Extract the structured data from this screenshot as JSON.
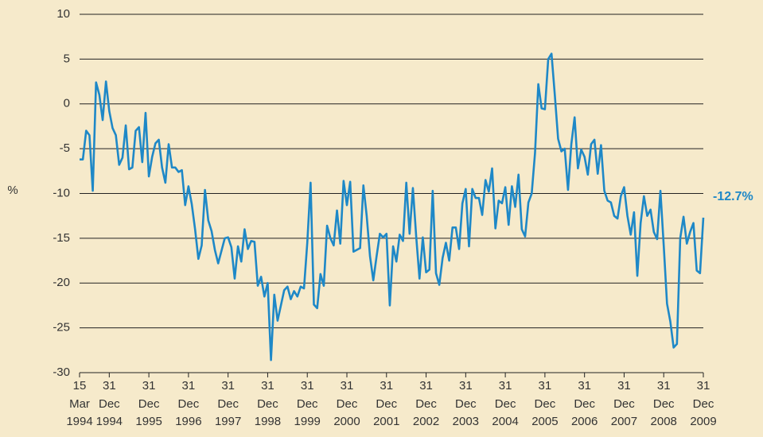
{
  "chart_data": {
    "type": "line",
    "y_label": "%",
    "categories": [
      "15 Mar 1994",
      null,
      null,
      null,
      null,
      null,
      null,
      null,
      null,
      "31 Dec 1994",
      null,
      null,
      null,
      null,
      null,
      null,
      null,
      null,
      null,
      null,
      null,
      "31 Dec 1995",
      null,
      null,
      null,
      null,
      null,
      null,
      null,
      null,
      null,
      null,
      null,
      "31 Dec 1996",
      null,
      null,
      null,
      null,
      null,
      null,
      null,
      null,
      null,
      null,
      null,
      "31 Dec 1997",
      null,
      null,
      null,
      null,
      null,
      null,
      null,
      null,
      null,
      null,
      null,
      "31 Dec 1998",
      null,
      null,
      null,
      null,
      null,
      null,
      null,
      null,
      null,
      null,
      null,
      "31 Dec 1999",
      null,
      null,
      null,
      null,
      null,
      null,
      null,
      null,
      null,
      null,
      null,
      "31 Dec 2000",
      null,
      null,
      null,
      null,
      null,
      null,
      null,
      null,
      null,
      null,
      null,
      "31 Dec 2001",
      null,
      null,
      null,
      null,
      null,
      null,
      null,
      null,
      null,
      null,
      null,
      "31 Dec 2002",
      null,
      null,
      null,
      null,
      null,
      null,
      null,
      null,
      null,
      null,
      null,
      "31 Dec 2003",
      null,
      null,
      null,
      null,
      null,
      null,
      null,
      null,
      null,
      null,
      null,
      "31 Dec 2004",
      null,
      null,
      null,
      null,
      null,
      null,
      null,
      null,
      null,
      null,
      null,
      "31 Dec 2005",
      null,
      null,
      null,
      null,
      null,
      null,
      null,
      null,
      null,
      null,
      null,
      "31 Dec 2006",
      null,
      null,
      null,
      null,
      null,
      null,
      null,
      null,
      null,
      null,
      null,
      "31 Dec 2007",
      null,
      null,
      null,
      null,
      null,
      null,
      null,
      null,
      null,
      null,
      null,
      "31 Dec 2008",
      null,
      null,
      null,
      null,
      null,
      null,
      null,
      null,
      null,
      null,
      null,
      "31 Dec 2009"
    ],
    "values": [
      -6.2,
      -6.2,
      -3,
      -3.5,
      -9.7,
      2.4,
      1,
      -1.8,
      2.5,
      -0.8,
      -2.7,
      -3.5,
      -6.8,
      -6,
      -2.4,
      -7.3,
      -7.1,
      -3,
      -2.6,
      -6.5,
      -1,
      -8.1,
      -5.9,
      -4.4,
      -4,
      -7.1,
      -8.8,
      -4.5,
      -7.1,
      -7.1,
      -7.6,
      -7.4,
      -11.3,
      -9.2,
      -11.2,
      -14,
      -17.3,
      -15.8,
      -9.6,
      -13,
      -14.2,
      -16.3,
      -17.8,
      -16.4,
      -15,
      -14.9,
      -16,
      -19.5,
      -15.9,
      -17.6,
      -14,
      -16.2,
      -15.3,
      -15.4,
      -20.3,
      -19.3,
      -21.5,
      -20,
      -28.6,
      -21.3,
      -24.2,
      -22.5,
      -20.8,
      -20.4,
      -21.8,
      -20.9,
      -21.5,
      -20.4,
      -20.6,
      -15.5,
      -8.8,
      -22.4,
      -22.8,
      -19,
      -20.3,
      -13.6,
      -15,
      -15.8,
      -11.9,
      -15.6,
      -8.6,
      -11.3,
      -8.7,
      -16.5,
      -16.3,
      -16.1,
      -9.1,
      -12.5,
      -17,
      -19.7,
      -17,
      -14.5,
      -14.9,
      -14.5,
      -22.5,
      -15.9,
      -17.6,
      -14.6,
      -15.3,
      -8.8,
      -14.5,
      -9.4,
      -14.8,
      -19.5,
      -14.9,
      -18.8,
      -18.5,
      -9.7,
      -18.9,
      -20.2,
      -17.2,
      -15.5,
      -17.5,
      -13.8,
      -13.8,
      -16.2,
      -11.1,
      -9.5,
      -15.9,
      -9.5,
      -10.5,
      -10.5,
      -12.4,
      -8.5,
      -9.8,
      -7.2,
      -13.9,
      -10.8,
      -11.1,
      -9.3,
      -13.5,
      -9.2,
      -11.5,
      -7.9,
      -14,
      -14.8,
      -11,
      -10,
      -5.5,
      2.2,
      -0.5,
      -0.6,
      5,
      5.6,
      1,
      -3.9,
      -5.3,
      -5,
      -9.6,
      -4.5,
      -1.5,
      -7.2,
      -5.1,
      -5.9,
      -7.9,
      -4.5,
      -4,
      -7.8,
      -4.6,
      -9.7,
      -10.8,
      -11,
      -12.5,
      -12.8,
      -10.3,
      -9.3,
      -12.5,
      -14.6,
      -12.1,
      -19.2,
      -13.3,
      -10.3,
      -12.5,
      -11.8,
      -14.3,
      -15.1,
      -9.7,
      -15.8,
      -22.3,
      -24.3,
      -27.2,
      -26.8,
      -15,
      -12.6,
      -15.6,
      -14.3,
      -13.3,
      -18.6,
      -18.9,
      -12.7
    ],
    "value_labels": [
      null,
      null,
      null,
      null,
      null,
      null,
      null,
      null,
      null,
      null,
      null,
      null,
      null,
      null,
      null,
      null,
      null,
      null,
      null,
      null,
      null,
      null,
      null,
      null,
      null,
      null,
      null,
      null,
      null,
      null,
      null,
      null,
      null,
      null,
      null,
      null,
      null,
      null,
      null,
      null,
      null,
      null,
      null,
      null,
      null,
      null,
      null,
      null,
      null,
      null,
      null,
      null,
      null,
      null,
      null,
      null,
      null,
      null,
      null,
      null,
      null,
      null,
      null,
      null,
      null,
      null,
      null,
      null,
      null,
      null,
      null,
      null,
      null,
      null,
      null,
      null,
      null,
      null,
      null,
      null,
      null,
      null,
      null,
      null,
      null,
      null,
      null,
      null,
      null,
      null,
      null,
      null,
      null,
      null,
      null,
      null,
      null,
      null,
      null,
      null,
      null,
      null,
      null,
      null,
      null,
      null,
      null,
      null,
      null,
      null,
      null,
      null,
      null,
      null,
      null,
      null,
      null,
      null,
      null,
      null,
      null,
      null,
      null,
      null,
      null,
      null,
      null,
      null,
      null,
      null,
      null,
      null,
      null,
      null,
      null,
      null,
      null,
      null,
      null,
      null,
      null,
      null,
      null,
      null,
      null,
      null,
      null,
      null,
      null,
      null,
      null,
      null,
      null,
      null,
      null,
      null,
      null,
      null,
      null,
      null,
      null,
      null,
      null,
      null,
      null,
      null,
      null,
      null,
      null,
      null,
      null,
      null,
      null,
      null,
      null,
      null,
      null,
      null,
      null,
      null,
      null,
      null,
      null,
      null,
      null,
      null,
      null,
      null,
      null,
      "-12.7%"
    ],
    "color": "#1e88c7",
    "ylim": [
      -30,
      10
    ],
    "yticks": [
      10,
      5,
      0,
      -5,
      -10,
      -15,
      -20,
      -25,
      -30
    ],
    "grid": true
  }
}
